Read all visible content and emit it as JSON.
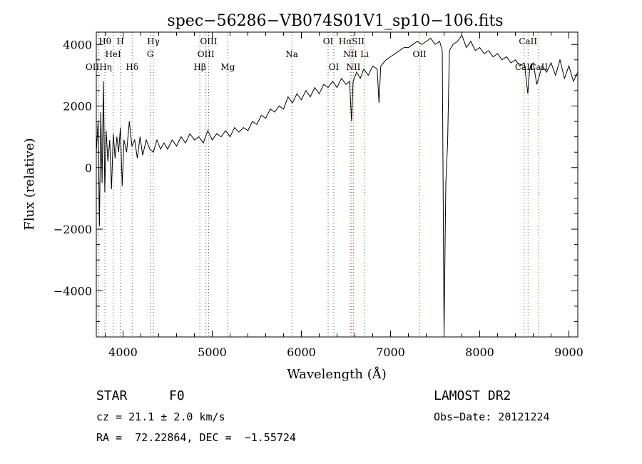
{
  "chart_data": {
    "type": "line",
    "title": "spec−56286−VB074S01V1_sp10−106.fits",
    "xlabel": "Wavelength (Å)",
    "ylabel": "Flux (relative)",
    "xlim": [
      3700,
      9100
    ],
    "ylim": [
      -5500,
      4400
    ],
    "xticks": [
      4000,
      5000,
      6000,
      7000,
      8000,
      9000
    ],
    "yticks": [
      -4000,
      -2000,
      0,
      2000,
      4000
    ],
    "ytick_labels": [
      "−4000",
      "−2000",
      "0",
      "2000",
      "4000"
    ],
    "grid": false,
    "line_color": "#000000",
    "series": [
      {
        "points": [
          [
            3700,
            500
          ],
          [
            3720,
            1500
          ],
          [
            3735,
            -1900
          ],
          [
            3750,
            1800
          ],
          [
            3765,
            -500
          ],
          [
            3780,
            2800
          ],
          [
            3795,
            -800
          ],
          [
            3810,
            1200
          ],
          [
            3830,
            200
          ],
          [
            3850,
            900
          ],
          [
            3870,
            -700
          ],
          [
            3890,
            1100
          ],
          [
            3910,
            300
          ],
          [
            3930,
            1000
          ],
          [
            3950,
            500
          ],
          [
            3970,
            1300
          ],
          [
            3990,
            -600
          ],
          [
            4010,
            900
          ],
          [
            4040,
            500
          ],
          [
            4070,
            1500
          ],
          [
            4100,
            700
          ],
          [
            4130,
            900
          ],
          [
            4160,
            300
          ],
          [
            4190,
            1000
          ],
          [
            4220,
            400
          ],
          [
            4260,
            900
          ],
          [
            4300,
            600
          ],
          [
            4340,
            500
          ],
          [
            4380,
            900
          ],
          [
            4420,
            600
          ],
          [
            4460,
            800
          ],
          [
            4500,
            600
          ],
          [
            4550,
            900
          ],
          [
            4600,
            700
          ],
          [
            4650,
            1000
          ],
          [
            4700,
            800
          ],
          [
            4750,
            1100
          ],
          [
            4800,
            900
          ],
          [
            4850,
            1000
          ],
          [
            4900,
            800
          ],
          [
            4950,
            1200
          ],
          [
            5000,
            900
          ],
          [
            5050,
            1100
          ],
          [
            5100,
            1000
          ],
          [
            5150,
            1200
          ],
          [
            5200,
            1000
          ],
          [
            5250,
            1300
          ],
          [
            5300,
            1150
          ],
          [
            5350,
            1300
          ],
          [
            5400,
            1200
          ],
          [
            5450,
            1500
          ],
          [
            5500,
            1400
          ],
          [
            5550,
            1700
          ],
          [
            5600,
            1600
          ],
          [
            5650,
            1900
          ],
          [
            5700,
            1800
          ],
          [
            5750,
            2000
          ],
          [
            5800,
            1900
          ],
          [
            5850,
            2300
          ],
          [
            5900,
            2100
          ],
          [
            5950,
            2400
          ],
          [
            6000,
            2200
          ],
          [
            6050,
            2500
          ],
          [
            6100,
            2300
          ],
          [
            6150,
            2600
          ],
          [
            6200,
            2400
          ],
          [
            6250,
            2700
          ],
          [
            6300,
            2600
          ],
          [
            6350,
            2800
          ],
          [
            6400,
            2600
          ],
          [
            6450,
            2900
          ],
          [
            6500,
            2700
          ],
          [
            6540,
            2800
          ],
          [
            6563,
            1500
          ],
          [
            6580,
            2800
          ],
          [
            6620,
            3100
          ],
          [
            6660,
            2900
          ],
          [
            6700,
            3200
          ],
          [
            6750,
            3000
          ],
          [
            6800,
            3300
          ],
          [
            6850,
            3200
          ],
          [
            6870,
            2100
          ],
          [
            6890,
            3300
          ],
          [
            6950,
            3500
          ],
          [
            7000,
            3600
          ],
          [
            7050,
            3700
          ],
          [
            7100,
            3800
          ],
          [
            7150,
            3900
          ],
          [
            7200,
            3900
          ],
          [
            7250,
            4000
          ],
          [
            7300,
            4100
          ],
          [
            7350,
            4000
          ],
          [
            7400,
            4100
          ],
          [
            7450,
            4200
          ],
          [
            7500,
            4000
          ],
          [
            7550,
            4100
          ],
          [
            7580,
            3800
          ],
          [
            7600,
            -5400
          ],
          [
            7620,
            -500
          ],
          [
            7640,
            800
          ],
          [
            7660,
            3800
          ],
          [
            7700,
            4000
          ],
          [
            7750,
            4100
          ],
          [
            7800,
            4300
          ],
          [
            7850,
            3900
          ],
          [
            7900,
            4100
          ],
          [
            7950,
            3800
          ],
          [
            8000,
            3900
          ],
          [
            8050,
            3700
          ],
          [
            8100,
            3800
          ],
          [
            8150,
            3600
          ],
          [
            8200,
            3700
          ],
          [
            8250,
            3500
          ],
          [
            8300,
            3600
          ],
          [
            8350,
            3400
          ],
          [
            8400,
            3500
          ],
          [
            8450,
            3300
          ],
          [
            8500,
            3400
          ],
          [
            8540,
            2400
          ],
          [
            8560,
            3200
          ],
          [
            8600,
            3400
          ],
          [
            8640,
            2700
          ],
          [
            8680,
            3100
          ],
          [
            8700,
            3300
          ],
          [
            8750,
            3100
          ],
          [
            8800,
            3400
          ],
          [
            8850,
            3000
          ],
          [
            8900,
            3500
          ],
          [
            8950,
            2900
          ],
          [
            9000,
            3300
          ],
          [
            9050,
            2800
          ],
          [
            9100,
            3100
          ]
        ]
      }
    ],
    "annotations": [
      {
        "text": "Hθ",
        "x": 3797
      },
      {
        "text": "H",
        "x": 3970
      },
      {
        "text": "Hγ",
        "x": 4340
      },
      {
        "text": "OIII",
        "x": 4960
      },
      {
        "text": "OI",
        "x": 6300
      },
      {
        "text": "HαSII",
        "x": 6563
      },
      {
        "text": "CaII",
        "x": 8542
      },
      {
        "text": "HeI",
        "x": 3889
      },
      {
        "text": "G",
        "x": 4305
      },
      {
        "text": "OIII",
        "x": 4930
      },
      {
        "text": "Na",
        "x": 5893
      },
      {
        "text": "NII",
        "x": 6548
      },
      {
        "text": "Li",
        "x": 6708
      },
      {
        "text": "OII",
        "x": 7325
      },
      {
        "text": "CaII",
        "x": 8498
      },
      {
        "text": "OIIHη",
        "x": 3727
      },
      {
        "text": "Hδ",
        "x": 4102
      },
      {
        "text": "Hβ",
        "x": 4861
      },
      {
        "text": "Mg",
        "x": 5175
      },
      {
        "text": "OI",
        "x": 6364
      },
      {
        "text": "NII",
        "x": 6583
      },
      {
        "text": "CaII",
        "x": 8662
      }
    ]
  },
  "info": {
    "object_type": "STAR",
    "spectral_class": "F0",
    "survey": "LAMOST DR2",
    "cz": "cz = 21.1 ± 2.0 km/s",
    "obs_date": "Obs−Date: 20121224",
    "coords": "RA =  72.22864, DEC =  −1.55724"
  }
}
